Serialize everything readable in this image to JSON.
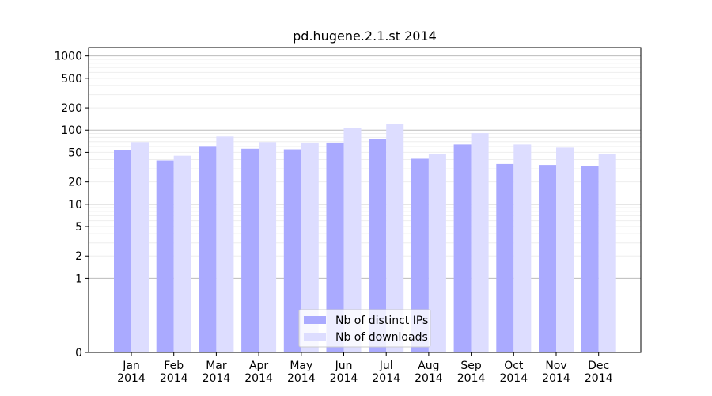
{
  "chart_data": {
    "type": "bar",
    "title": "pd.hugene.2.1.st 2014",
    "xlabel": "",
    "ylabel": "",
    "y_scale": "symlog",
    "ylim": [
      0,
      1300
    ],
    "y_ticks": [
      0,
      1,
      2,
      5,
      10,
      20,
      50,
      100,
      200,
      500,
      1000
    ],
    "y_tick_labels": [
      "0",
      "1",
      "2",
      "5",
      "10",
      "20",
      "50",
      "100",
      "200",
      "500",
      "1000"
    ],
    "categories": [
      "Jan\n2014",
      "Feb\n2014",
      "Mar\n2014",
      "Apr\n2014",
      "May\n2014",
      "Jun\n2014",
      "Jul\n2014",
      "Aug\n2014",
      "Sep\n2014",
      "Oct\n2014",
      "Nov\n2014",
      "Dec\n2014"
    ],
    "series": [
      {
        "name": "Nb of distinct IPs",
        "color": "#aaaaff",
        "values": [
          54,
          39,
          61,
          56,
          55,
          68,
          75,
          41,
          64,
          35,
          34,
          33
        ]
      },
      {
        "name": "Nb of downloads",
        "color": "#ddddff",
        "values": [
          69,
          45,
          82,
          69,
          68,
          107,
          120,
          48,
          91,
          64,
          58,
          47
        ]
      }
    ],
    "grid": true,
    "legend_position": "lower center"
  }
}
